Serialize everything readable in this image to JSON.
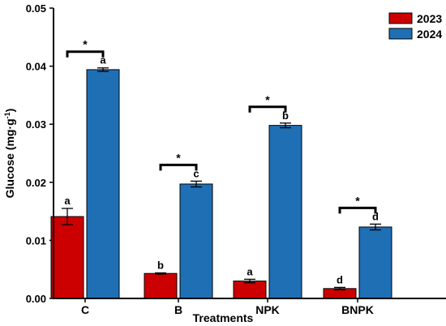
{
  "chart_data": {
    "type": "bar",
    "title": "",
    "xlabel": "Treatments",
    "ylabel": "Glucose (mg·g",
    "ylabel_superscript": "-1",
    "ylabel_close": ")",
    "ylim": [
      0,
      0.05
    ],
    "yticks": [
      "0.00",
      "0.01",
      "0.02",
      "0.03",
      "0.04",
      "0.05"
    ],
    "categories": [
      "C",
      "B",
      "NPK",
      "BNPK"
    ],
    "series": [
      {
        "name": "2023",
        "color": "#cc0000",
        "values": [
          0.0141,
          0.0043,
          0.003,
          0.0017
        ],
        "errors": [
          0.0014,
          0.0001,
          0.0003,
          0.0002
        ],
        "letters": [
          "a",
          "b",
          "a",
          "d"
        ]
      },
      {
        "name": "2024",
        "color": "#1f6fb5",
        "values": [
          0.0394,
          0.0197,
          0.0298,
          0.0123
        ],
        "errors": [
          0.0003,
          0.0005,
          0.0004,
          0.0005
        ],
        "letters": [
          "a",
          "c",
          "b",
          "d"
        ]
      }
    ],
    "significance": [
      "*",
      "*",
      "*",
      "*"
    ],
    "legend_position": "top-right",
    "grid": false
  }
}
